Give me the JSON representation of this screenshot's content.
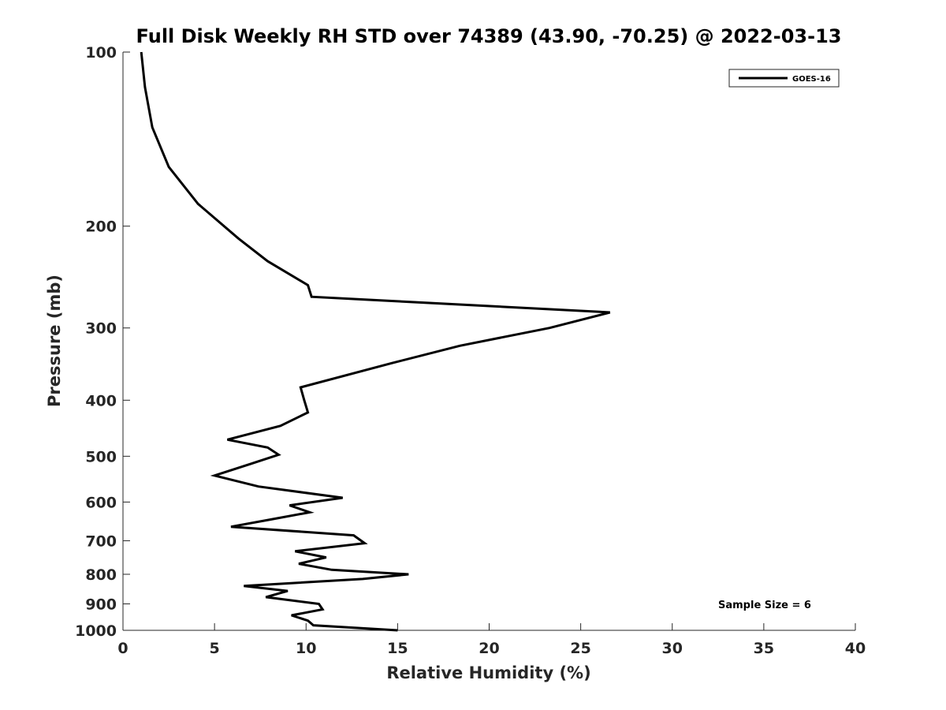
{
  "chart_data": {
    "type": "line",
    "title": "Full Disk Weekly RH STD over 74389 (43.90, -70.25) @ 2022-03-13",
    "xlabel": "Relative Humidity (%)",
    "ylabel": "Pressure (mb)",
    "xlim": [
      0,
      40
    ],
    "ylim": [
      100,
      1000
    ],
    "yscale": "log",
    "y_reversed": true,
    "x_ticks": [
      0,
      5,
      10,
      15,
      20,
      25,
      30,
      35,
      40
    ],
    "x_tick_labels": [
      "0",
      "5",
      "10",
      "15",
      "20",
      "25",
      "30",
      "35",
      "40"
    ],
    "y_ticks": [
      100,
      200,
      300,
      400,
      500,
      600,
      700,
      800,
      900,
      1000
    ],
    "y_tick_labels": [
      "100",
      "200",
      "300",
      "400",
      "500",
      "600",
      "700",
      "800",
      "900",
      "1000"
    ],
    "legend_position": "top-right",
    "annotation": "Sample Size = 6",
    "series": [
      {
        "name": "GOES-16",
        "color": "#000000",
        "points": [
          [
            1.0,
            100
          ],
          [
            1.2,
            115
          ],
          [
            1.6,
            135
          ],
          [
            2.5,
            158
          ],
          [
            4.1,
            183
          ],
          [
            6.3,
            210
          ],
          [
            7.9,
            230
          ],
          [
            10.1,
            253
          ],
          [
            10.3,
            265
          ],
          [
            26.6,
            282
          ],
          [
            23.3,
            300
          ],
          [
            18.4,
            322
          ],
          [
            14.7,
            345
          ],
          [
            9.7,
            380
          ],
          [
            9.9,
            400
          ],
          [
            10.1,
            420
          ],
          [
            8.6,
            443
          ],
          [
            5.7,
            468
          ],
          [
            7.9,
            483
          ],
          [
            8.5,
            497
          ],
          [
            7.0,
            515
          ],
          [
            5.0,
            540
          ],
          [
            7.4,
            564
          ],
          [
            12.0,
            590
          ],
          [
            9.1,
            608
          ],
          [
            10.2,
            625
          ],
          [
            8.1,
            643
          ],
          [
            5.9,
            662
          ],
          [
            12.6,
            685
          ],
          [
            13.2,
            707
          ],
          [
            9.4,
            730
          ],
          [
            11.1,
            748
          ],
          [
            9.6,
            767
          ],
          [
            11.4,
            786
          ],
          [
            15.6,
            800
          ],
          [
            13.1,
            815
          ],
          [
            6.6,
            838
          ],
          [
            9.0,
            855
          ],
          [
            7.8,
            876
          ],
          [
            10.7,
            900
          ],
          [
            10.9,
            920
          ],
          [
            9.2,
            942
          ],
          [
            10.1,
            962
          ],
          [
            10.4,
            980
          ],
          [
            15.0,
            1000
          ]
        ]
      }
    ]
  }
}
